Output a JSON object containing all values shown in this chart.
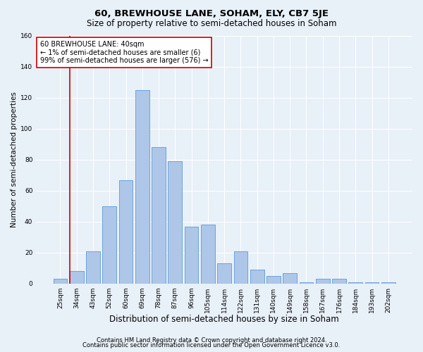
{
  "title": "60, BREWHOUSE LANE, SOHAM, ELY, CB7 5JE",
  "subtitle": "Size of property relative to semi-detached houses in Soham",
  "xlabel": "Distribution of semi-detached houses by size in Soham",
  "ylabel": "Number of semi-detached properties",
  "bar_labels": [
    "25sqm",
    "34sqm",
    "43sqm",
    "52sqm",
    "60sqm",
    "69sqm",
    "78sqm",
    "87sqm",
    "96sqm",
    "105sqm",
    "114sqm",
    "122sqm",
    "131sqm",
    "140sqm",
    "149sqm",
    "158sqm",
    "167sqm",
    "176sqm",
    "184sqm",
    "193sqm",
    "202sqm"
  ],
  "bar_values": [
    3,
    8,
    21,
    50,
    67,
    125,
    88,
    79,
    37,
    38,
    13,
    21,
    9,
    5,
    7,
    1,
    3,
    3,
    1,
    1,
    1
  ],
  "bar_color": "#aec6e8",
  "bar_edge_color": "#5b9bd5",
  "vline_color": "#cc0000",
  "annotation_text": "60 BREWHOUSE LANE: 40sqm\n← 1% of semi-detached houses are smaller (6)\n99% of semi-detached houses are larger (576) →",
  "annotation_box_color": "#ffffff",
  "annotation_box_edge": "#cc0000",
  "ylim": [
    0,
    160
  ],
  "yticks": [
    0,
    20,
    40,
    60,
    80,
    100,
    120,
    140,
    160
  ],
  "footer1": "Contains HM Land Registry data © Crown copyright and database right 2024.",
  "footer2": "Contains public sector information licensed under the Open Government Licence v3.0.",
  "bg_color": "#e8f0f8",
  "plot_bg": "#e8f0f8",
  "grid_color": "#ffffff",
  "title_fontsize": 9.5,
  "subtitle_fontsize": 8.5,
  "xlabel_fontsize": 8.5,
  "ylabel_fontsize": 7.5,
  "annotation_fontsize": 7.0,
  "tick_fontsize": 6.5,
  "footer_fontsize": 6.0
}
